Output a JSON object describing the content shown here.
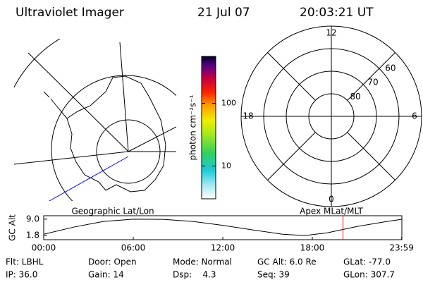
{
  "header": {
    "title": "Ultraviolet Imager",
    "date": "21 Jul 07",
    "time": "20:03:21 UT"
  },
  "map_labels": [
    "Geographic Lat/Lon",
    "Apex MLat/MLT"
  ],
  "chart_data": [
    {
      "type": "colorbar",
      "label": "photon cm⁻²s⁻¹",
      "log": true,
      "ylim": [
        3,
        560
      ],
      "yticks": [
        10,
        100
      ]
    },
    {
      "type": "polar",
      "rlim": [
        90,
        50
      ],
      "rticks": [
        80,
        70,
        60
      ],
      "thetaticks": [
        0,
        6,
        12,
        18
      ]
    },
    {
      "type": "line",
      "ylabel": "GC Alt",
      "xlim": [
        0,
        24
      ],
      "xticks": [
        {
          "value": 0,
          "label": "00:00"
        },
        {
          "value": 6,
          "label": "06:00"
        },
        {
          "value": 12,
          "label": "12:00"
        },
        {
          "value": 18,
          "label": "18:00"
        },
        {
          "value": 23.983,
          "label": "23:59"
        }
      ],
      "ylim": [
        0,
        10.5
      ],
      "yticks": [
        {
          "value": 9,
          "label": "9.0"
        },
        1.8
      ],
      "x": [
        0,
        2,
        4,
        6,
        8,
        10,
        12,
        14,
        16,
        17.5,
        19,
        21,
        23,
        23.983
      ],
      "series": [
        {
          "color": "#000000",
          "values": [
            2.4,
            5.5,
            8.0,
            9.0,
            8.9,
            8.0,
            6.3,
            4.3,
            2.4,
            1.8,
            3.0,
            5.8,
            8.0,
            8.9
          ]
        }
      ],
      "marker": {
        "x": 20.056,
        "color": "#ff0000"
      }
    }
  ],
  "info": [
    [
      "Flt: LBHL",
      "Door: Open",
      "Mode: Normal",
      "GC Alt: 6.0 Re",
      "GLat: -77.0"
    ],
    [
      "IP: 36.0",
      "Gain: 14",
      "Dsp:    4.3",
      "Seq: 39",
      "GLon: 307.7"
    ]
  ]
}
